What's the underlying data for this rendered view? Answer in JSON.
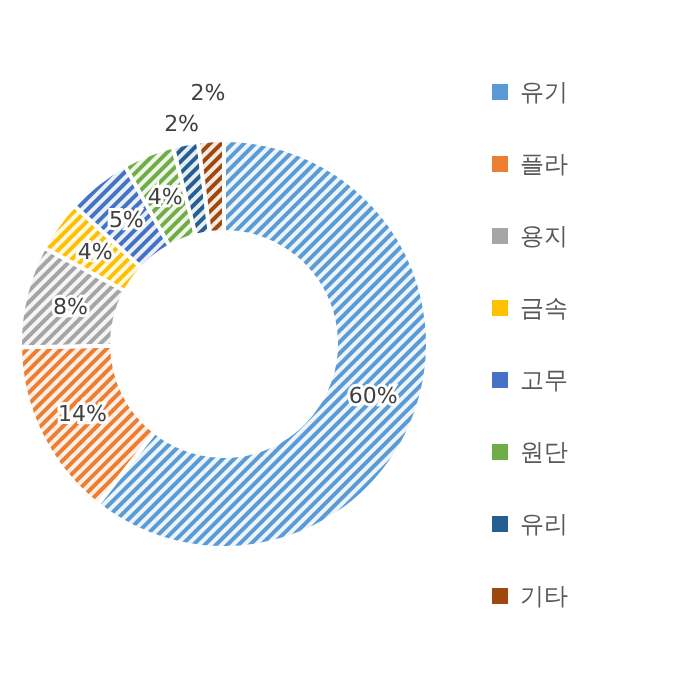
{
  "chart_data": {
    "type": "donut",
    "categories": [
      "유기",
      "플라",
      "용지",
      "금속",
      "고무",
      "원단",
      "유리",
      "기타"
    ],
    "values": [
      60,
      14,
      8,
      4,
      5,
      4,
      2,
      2
    ],
    "colors": [
      "#5b9bd5",
      "#ed7d31",
      "#a5a5a5",
      "#ffc000",
      "#4472c4",
      "#70ad47",
      "#255e91",
      "#9e480e"
    ],
    "value_labels": [
      "60%",
      "14%",
      "8%",
      "4%",
      "5%",
      "4%",
      "2%",
      "2%"
    ],
    "legend": "right"
  }
}
